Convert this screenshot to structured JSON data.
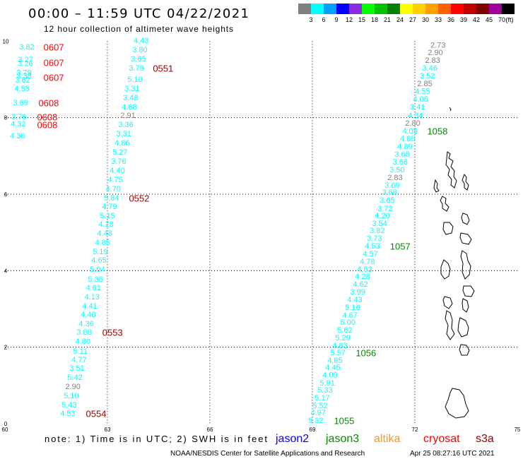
{
  "header": {
    "title": "00:00 – 11:59 UTC 04/22/2021",
    "subtitle": "12 hour collection of altimeter wave heights"
  },
  "colorbar": {
    "colors": [
      "#808080",
      "#00ffff",
      "#00a0ff",
      "#0000ff",
      "#8a2be2",
      "#00ff00",
      "#00c000",
      "#008000",
      "#ffff00",
      "#ffd000",
      "#ffa000",
      "#ff6000",
      "#ff0000",
      "#c00000",
      "#800000",
      "#a000a0",
      "#000000"
    ],
    "labels": [
      "3",
      "6",
      "9",
      "12",
      "15",
      "18",
      "21",
      "24",
      "27",
      "30",
      "33",
      "36",
      "39",
      "42",
      "45",
      "70",
      "(ft)"
    ]
  },
  "map": {
    "lon_ticks": [
      "60",
      "63",
      "66",
      "69",
      "72",
      "75"
    ],
    "lat_ticks": [
      "10",
      "8",
      "6",
      "4",
      "2",
      "0"
    ],
    "lon_range": [
      60,
      75
    ],
    "lat_range": [
      0,
      10
    ],
    "grid": "dotted"
  },
  "chart_data": {
    "type": "scatter",
    "tracks": [
      {
        "satellite": "s3a",
        "times": [
          {
            "label": "0551",
            "lon": 64.63,
            "lat": 9.29
          },
          {
            "label": "0552",
            "lon": 63.93,
            "lat": 5.89
          },
          {
            "label": "0553",
            "lon": 63.15,
            "lat": 2.38
          },
          {
            "label": "0554",
            "lon": 62.67,
            "lat": 0.26
          }
        ],
        "points": [
          {
            "swh": "4.43",
            "lon": 63.99,
            "lat": 10.01
          },
          {
            "swh": "3.80",
            "lon": 63.95,
            "lat": 9.77
          },
          {
            "swh": "3.65",
            "lon": 63.91,
            "lat": 9.53
          },
          {
            "swh": "3.79",
            "lon": 63.85,
            "lat": 9.29
          },
          {
            "swh": "5.10",
            "lon": 63.81,
            "lat": 8.99
          },
          {
            "swh": "3.31",
            "lon": 63.72,
            "lat": 8.75
          },
          {
            "swh": "3.48",
            "lon": 63.68,
            "lat": 8.51
          },
          {
            "swh": "4.68",
            "lon": 63.64,
            "lat": 8.27
          },
          {
            "swh": "2.91",
            "lon": 63.6,
            "lat": 8.05
          },
          {
            "swh": "3.36",
            "lon": 63.54,
            "lat": 7.81
          },
          {
            "swh": "3.31",
            "lon": 63.48,
            "lat": 7.57
          },
          {
            "swh": "4.86",
            "lon": 63.43,
            "lat": 7.33
          },
          {
            "swh": "5.27",
            "lon": 63.37,
            "lat": 7.09
          },
          {
            "swh": "3.76",
            "lon": 63.33,
            "lat": 6.85
          },
          {
            "swh": "4.40",
            "lon": 63.29,
            "lat": 6.61
          },
          {
            "swh": "4.75",
            "lon": 63.23,
            "lat": 6.37
          },
          {
            "swh": "4.70",
            "lon": 63.17,
            "lat": 6.13
          },
          {
            "swh": "5.84",
            "lon": 63.12,
            "lat": 5.89
          },
          {
            "swh": "4.79",
            "lon": 63.06,
            "lat": 5.67
          },
          {
            "swh": "5.15",
            "lon": 63.0,
            "lat": 5.43
          },
          {
            "swh": "4.28",
            "lon": 62.96,
            "lat": 5.21
          },
          {
            "swh": "4.48",
            "lon": 62.92,
            "lat": 4.97
          },
          {
            "swh": "4.85",
            "lon": 62.86,
            "lat": 4.73
          },
          {
            "swh": "5.19",
            "lon": 62.79,
            "lat": 4.49
          },
          {
            "swh": "4.65",
            "lon": 62.75,
            "lat": 4.26
          },
          {
            "swh": "5.04",
            "lon": 62.71,
            "lat": 4.02
          },
          {
            "swh": "5.36",
            "lon": 62.65,
            "lat": 3.77
          },
          {
            "swh": "4.61",
            "lon": 62.59,
            "lat": 3.54
          },
          {
            "swh": "4.13",
            "lon": 62.55,
            "lat": 3.3
          },
          {
            "swh": "4.41",
            "lon": 62.48,
            "lat": 3.06
          },
          {
            "swh": "4.48",
            "lon": 62.44,
            "lat": 2.84
          },
          {
            "swh": "4.36",
            "lon": 62.38,
            "lat": 2.6
          },
          {
            "swh": "3.88",
            "lon": 62.32,
            "lat": 2.38
          },
          {
            "swh": "4.80",
            "lon": 62.28,
            "lat": 2.14
          },
          {
            "swh": "5.11",
            "lon": 62.21,
            "lat": 1.88
          },
          {
            "swh": "4.77",
            "lon": 62.17,
            "lat": 1.66
          },
          {
            "swh": "3.51",
            "lon": 62.11,
            "lat": 1.44
          },
          {
            "swh": "5.42",
            "lon": 62.05,
            "lat": 1.2
          },
          {
            "swh": "2.90",
            "lon": 61.99,
            "lat": 0.96
          },
          {
            "swh": "5.10",
            "lon": 61.94,
            "lat": 0.72
          },
          {
            "swh": "5.43",
            "lon": 61.88,
            "lat": 0.48
          },
          {
            "swh": "4.53",
            "lon": 61.84,
            "lat": 0.26
          }
        ]
      },
      {
        "satellite": "cryosat",
        "times": [
          {
            "label": "0607",
            "lon": 61.43,
            "lat": 9.84
          },
          {
            "label": "0607",
            "lon": 61.43,
            "lat": 9.43
          },
          {
            "label": "0607",
            "lon": 61.43,
            "lat": 9.05
          },
          {
            "label": "0608",
            "lon": 61.28,
            "lat": 8.38
          },
          {
            "label": "0608",
            "lon": 61.24,
            "lat": 8.01
          },
          {
            "label": "0608",
            "lon": 61.24,
            "lat": 7.81
          }
        ],
        "points": [
          {
            "swh": "3.82",
            "lon": 60.64,
            "lat": 9.84
          },
          {
            "swh": "3.27",
            "lon": 60.6,
            "lat": 9.51
          },
          {
            "swh": "3.26",
            "lon": 60.6,
            "lat": 9.41
          },
          {
            "swh": "3.79",
            "lon": 60.56,
            "lat": 9.17
          },
          {
            "swh": "3.38",
            "lon": 60.56,
            "lat": 9.08
          },
          {
            "swh": "3.62",
            "lon": 60.52,
            "lat": 8.97
          },
          {
            "swh": "4.55",
            "lon": 60.5,
            "lat": 8.75
          },
          {
            "swh": "3.69",
            "lon": 60.46,
            "lat": 8.38
          },
          {
            "swh": "3.76",
            "lon": 60.41,
            "lat": 8.01
          },
          {
            "swh": "4.32",
            "lon": 60.39,
            "lat": 7.83
          },
          {
            "swh": "4.30",
            "lon": 60.37,
            "lat": 7.51
          }
        ]
      },
      {
        "satellite": "jason3",
        "times": [
          {
            "label": "1058",
            "lon": 72.66,
            "lat": 7.64
          },
          {
            "label": "1057",
            "lon": 71.57,
            "lat": 4.63
          },
          {
            "label": "1056",
            "lon": 70.57,
            "lat": 1.85
          },
          {
            "label": "1055",
            "lon": 69.93,
            "lat": 0.07
          }
        ],
        "points": [
          {
            "swh": "2.73",
            "lon": 72.68,
            "lat": 9.89
          },
          {
            "swh": "2.90",
            "lon": 72.6,
            "lat": 9.69
          },
          {
            "swh": "2.83",
            "lon": 72.52,
            "lat": 9.49
          },
          {
            "swh": "3.46",
            "lon": 72.44,
            "lat": 9.29
          },
          {
            "swh": "3.52",
            "lon": 72.37,
            "lat": 9.08
          },
          {
            "swh": "2.85",
            "lon": 72.29,
            "lat": 8.88
          },
          {
            "swh": "4.55",
            "lon": 72.23,
            "lat": 8.68
          },
          {
            "swh": "4.06",
            "lon": 72.17,
            "lat": 8.47
          },
          {
            "swh": "3.41",
            "lon": 72.08,
            "lat": 8.27
          },
          {
            "swh": "4.34",
            "lon": 72.02,
            "lat": 8.05
          },
          {
            "swh": "2.80",
            "lon": 71.94,
            "lat": 7.85
          },
          {
            "swh": "4.05",
            "lon": 71.86,
            "lat": 7.64
          },
          {
            "swh": "4.85",
            "lon": 71.79,
            "lat": 7.44
          },
          {
            "swh": "4.89",
            "lon": 71.71,
            "lat": 7.24
          },
          {
            "swh": "3.68",
            "lon": 71.63,
            "lat": 7.03
          },
          {
            "swh": "3.66",
            "lon": 71.57,
            "lat": 6.83
          },
          {
            "swh": "3.50",
            "lon": 71.48,
            "lat": 6.63
          },
          {
            "swh": "2.83",
            "lon": 71.42,
            "lat": 6.42
          },
          {
            "swh": "3.69",
            "lon": 71.34,
            "lat": 6.22
          },
          {
            "swh": "3.68",
            "lon": 71.26,
            "lat": 6.04
          },
          {
            "swh": "3.65",
            "lon": 71.19,
            "lat": 5.83
          },
          {
            "swh": "3.72",
            "lon": 71.13,
            "lat": 5.61
          },
          {
            "swh": "4.20",
            "lon": 71.05,
            "lat": 5.43
          },
          {
            "swh": "3.54",
            "lon": 70.97,
            "lat": 5.22
          },
          {
            "swh": "3.82",
            "lon": 70.9,
            "lat": 5.04
          },
          {
            "swh": "3.73",
            "lon": 70.82,
            "lat": 4.84
          },
          {
            "swh": "4.53",
            "lon": 70.76,
            "lat": 4.63
          },
          {
            "swh": "4.57",
            "lon": 70.7,
            "lat": 4.43
          },
          {
            "swh": "4.78",
            "lon": 70.61,
            "lat": 4.23
          },
          {
            "swh": "4.53",
            "lon": 70.53,
            "lat": 4.02
          },
          {
            "swh": "4.28",
            "lon": 70.47,
            "lat": 3.84
          },
          {
            "swh": "4.62",
            "lon": 70.41,
            "lat": 3.64
          },
          {
            "swh": "3.99",
            "lon": 70.33,
            "lat": 3.43
          },
          {
            "swh": "4.43",
            "lon": 70.24,
            "lat": 3.23
          },
          {
            "swh": "5.16",
            "lon": 70.18,
            "lat": 3.03
          },
          {
            "swh": "4.67",
            "lon": 70.1,
            "lat": 2.82
          },
          {
            "swh": "5.00",
            "lon": 70.04,
            "lat": 2.64
          },
          {
            "swh": "5.62",
            "lon": 69.95,
            "lat": 2.44
          },
          {
            "swh": "5.29",
            "lon": 69.89,
            "lat": 2.23
          },
          {
            "swh": "4.83",
            "lon": 69.81,
            "lat": 2.03
          },
          {
            "swh": "5.57",
            "lon": 69.75,
            "lat": 1.85
          },
          {
            "swh": "4.85",
            "lon": 69.66,
            "lat": 1.64
          },
          {
            "swh": "4.45",
            "lon": 69.6,
            "lat": 1.46
          },
          {
            "swh": "4.09",
            "lon": 69.52,
            "lat": 1.26
          },
          {
            "swh": "5.91",
            "lon": 69.44,
            "lat": 1.05
          },
          {
            "swh": "5.33",
            "lon": 69.37,
            "lat": 0.87
          },
          {
            "swh": "5.17",
            "lon": 69.29,
            "lat": 0.66
          },
          {
            "swh": "5.52",
            "lon": 69.23,
            "lat": 0.46
          },
          {
            "swh": "4.97",
            "lon": 69.17,
            "lat": 0.28
          },
          {
            "swh": "5.32",
            "lon": 69.1,
            "lat": 0.07
          }
        ]
      }
    ]
  },
  "legend": {
    "note": "note: 1) Time is in UTC; 2) SWH is in feet",
    "satellites": [
      {
        "name": "jason2",
        "color": "#0000ff"
      },
      {
        "name": "jason3",
        "color": "#008c00"
      },
      {
        "name": "altika",
        "color": "#ff9900"
      },
      {
        "name": "cryosat",
        "color": "#ff0000"
      },
      {
        "name": "s3a",
        "color": "#a00000"
      }
    ]
  },
  "footer": {
    "credit": "NOAA/NESDIS Center for Satellite Applications and Research",
    "timestamp": "Apr 25 08:27:16 UTC 2021"
  }
}
